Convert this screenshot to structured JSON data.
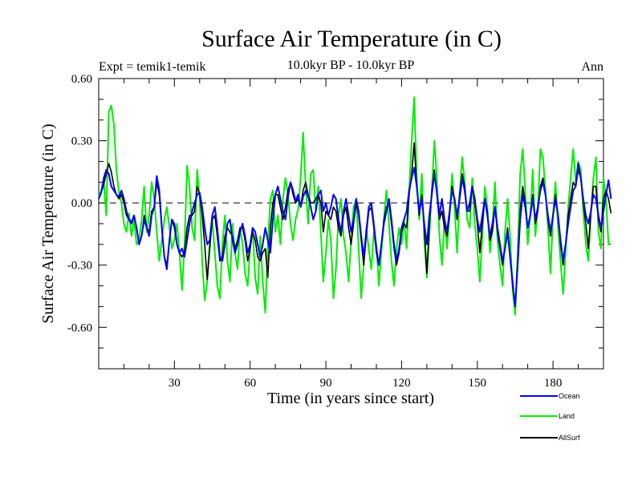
{
  "chart_data": {
    "type": "line",
    "title": "Surface Air Temperature (in C)",
    "left_label": "Expt = temik1-temik",
    "subtitle": "10.0kyr BP - 10.0kyr BP",
    "right_label": "Ann",
    "xlabel": "Time (in years since start)",
    "ylabel": "Surface Air Temperature (in C)",
    "xlim": [
      0,
      200
    ],
    "ylim": [
      -0.8,
      0.6
    ],
    "xticks": [
      30,
      60,
      90,
      120,
      150,
      180
    ],
    "yticks": [
      0.6,
      0.3,
      0.0,
      -0.3,
      -0.6
    ],
    "ytick_labels": [
      "0.60",
      "0.30",
      "0.00",
      "-0.30",
      "-0.60"
    ],
    "reference_line": 0.0,
    "series": [
      {
        "name": "Ocean",
        "color": "#0000ff",
        "values": [
          0.02,
          0.05,
          0.12,
          0.16,
          0.14,
          0.08,
          0.06,
          0.04,
          0.03,
          0.06,
          0.02,
          -0.04,
          -0.08,
          -0.1,
          -0.06,
          -0.12,
          -0.2,
          -0.16,
          -0.08,
          -0.12,
          -0.16,
          -0.06,
          -0.02,
          0.13,
          0.06,
          -0.12,
          -0.26,
          -0.32,
          -0.18,
          -0.08,
          -0.1,
          -0.2,
          -0.24,
          -0.22,
          -0.26,
          -0.18,
          -0.1,
          -0.04,
          0.0,
          0.04,
          0.05,
          -0.02,
          -0.12,
          -0.2,
          -0.18,
          -0.06,
          -0.02,
          -0.12,
          -0.26,
          -0.28,
          -0.2,
          -0.1,
          -0.08,
          -0.18,
          -0.24,
          -0.2,
          -0.14,
          -0.1,
          -0.16,
          -0.24,
          -0.2,
          -0.12,
          -0.14,
          -0.2,
          -0.26,
          -0.2,
          -0.12,
          -0.18,
          -0.24,
          -0.08,
          0.04,
          0.08,
          0.02,
          -0.04,
          -0.08,
          0.03,
          0.1,
          0.06,
          0.01,
          0.04,
          -0.02,
          0.03,
          0.06,
          0.03,
          -0.02,
          -0.08,
          -0.04,
          0.04,
          0.06,
          -0.04,
          0.0,
          -0.06,
          -0.02,
          0.04,
          0.02,
          -0.08,
          -0.14,
          -0.04,
          0.02,
          -0.06,
          -0.14,
          -0.08,
          0.02,
          -0.04,
          -0.16,
          -0.26,
          -0.14,
          -0.02,
          0.0,
          -0.1,
          -0.22,
          -0.3,
          -0.2,
          -0.1,
          -0.04,
          0.02,
          -0.08,
          -0.2,
          -0.28,
          -0.22,
          -0.12,
          -0.08,
          -0.04,
          0.06,
          0.12,
          0.17,
          0.08,
          -0.04,
          0.02,
          -0.1,
          -0.2,
          -0.06,
          0.04,
          0.14,
          0.05,
          -0.06,
          0.02,
          -0.08,
          -0.14,
          -0.04,
          0.06,
          0.02,
          -0.06,
          0.02,
          0.12,
          0.06,
          -0.04,
          0.0,
          0.08,
          0.02,
          -0.08,
          -0.14,
          -0.06,
          0.02,
          -0.06,
          -0.16,
          -0.1,
          -0.02,
          -0.12,
          -0.2,
          -0.28,
          -0.22,
          -0.14,
          -0.26,
          -0.38,
          -0.5,
          -0.3,
          -0.08,
          0.04,
          -0.02,
          -0.12,
          -0.06,
          0.02,
          -0.08,
          -0.02,
          0.06,
          0.1,
          0.04,
          -0.06,
          -0.14,
          -0.06,
          0.02,
          -0.06,
          -0.18,
          -0.28,
          -0.2,
          -0.1,
          -0.02,
          0.06,
          0.08,
          0.19,
          0.12,
          0.02,
          -0.06,
          -0.1,
          -0.04,
          0.04,
          0.02,
          -0.06,
          -0.12,
          -0.04,
          0.04,
          0.11,
          0.02
        ]
      },
      {
        "name": "Land",
        "color": "#00ee00",
        "values": [
          0.03,
          0.06,
          0.1,
          -0.06,
          0.44,
          0.47,
          0.38,
          0.16,
          0.05,
          0.0,
          -0.1,
          -0.14,
          -0.05,
          -0.16,
          -0.08,
          -0.2,
          -0.18,
          -0.08,
          0.08,
          -0.14,
          -0.06,
          0.1,
          0.02,
          -0.14,
          -0.28,
          -0.18,
          -0.08,
          -0.02,
          -0.12,
          -0.22,
          -0.18,
          -0.1,
          -0.24,
          -0.42,
          -0.2,
          0.18,
          0.08,
          -0.12,
          -0.18,
          0.16,
          0.02,
          -0.28,
          -0.47,
          -0.38,
          -0.18,
          -0.08,
          -0.24,
          -0.4,
          -0.46,
          -0.2,
          -0.06,
          -0.28,
          -0.38,
          -0.1,
          -0.24,
          -0.32,
          -0.12,
          -0.2,
          -0.34,
          -0.4,
          -0.22,
          -0.12,
          -0.36,
          -0.44,
          -0.16,
          -0.38,
          -0.53,
          -0.2,
          0.02,
          0.06,
          -0.14,
          -0.06,
          -0.2,
          0.02,
          0.12,
          0.04,
          -0.1,
          -0.18,
          -0.08,
          -0.03,
          0.12,
          0.34,
          0.08,
          -0.1,
          0.14,
          0.16,
          -0.04,
          0.08,
          -0.14,
          -0.38,
          -0.24,
          -0.08,
          -0.18,
          -0.46,
          -0.32,
          -0.06,
          0.02,
          -0.16,
          -0.24,
          -0.38,
          -0.18,
          -0.02,
          0.02,
          -0.22,
          -0.46,
          -0.3,
          -0.12,
          -0.22,
          -0.32,
          -0.14,
          -0.2,
          -0.4,
          -0.24,
          -0.08,
          0.06,
          -0.1,
          -0.28,
          -0.4,
          -0.22,
          -0.12,
          -0.2,
          -0.08,
          -0.22,
          0.06,
          0.3,
          0.51,
          0.12,
          -0.08,
          0.14,
          -0.18,
          -0.36,
          -0.16,
          0.06,
          0.3,
          0.12,
          -0.16,
          -0.3,
          -0.08,
          -0.22,
          -0.06,
          0.14,
          -0.02,
          -0.24,
          0.04,
          0.22,
          0.1,
          -0.08,
          -0.12,
          0.12,
          -0.1,
          -0.22,
          -0.38,
          -0.16,
          0.08,
          -0.02,
          -0.24,
          -0.12,
          0.1,
          -0.18,
          -0.3,
          -0.4,
          -0.14,
          0.02,
          -0.16,
          -0.42,
          -0.54,
          -0.24,
          0.14,
          0.26,
          0.06,
          -0.2,
          -0.06,
          0.16,
          -0.16,
          -0.02,
          0.26,
          0.22,
          0.06,
          -0.12,
          -0.34,
          -0.06,
          0.1,
          -0.12,
          -0.28,
          -0.44,
          -0.24,
          -0.02,
          0.12,
          0.26,
          0.1,
          0.2,
          0.16,
          -0.04,
          -0.2,
          -0.28,
          -0.06,
          0.12,
          0.22,
          -0.14,
          -0.22,
          0.12,
          0.02,
          -0.2,
          -0.2
        ]
      },
      {
        "name": "AllSurf",
        "color": "#000000",
        "values": [
          0.02,
          0.05,
          0.09,
          0.14,
          0.19,
          0.15,
          0.08,
          0.04,
          0.02,
          0.04,
          0.0,
          -0.06,
          -0.08,
          -0.09,
          -0.06,
          -0.12,
          -0.2,
          -0.16,
          -0.06,
          -0.12,
          -0.14,
          -0.04,
          -0.02,
          0.1,
          0.04,
          -0.12,
          -0.26,
          -0.3,
          -0.18,
          -0.08,
          -0.12,
          -0.2,
          -0.24,
          -0.26,
          -0.24,
          -0.12,
          -0.06,
          -0.06,
          -0.04,
          0.08,
          0.04,
          -0.06,
          -0.2,
          -0.37,
          -0.22,
          -0.08,
          -0.06,
          -0.16,
          -0.28,
          -0.26,
          -0.16,
          -0.12,
          -0.14,
          -0.16,
          -0.22,
          -0.18,
          -0.12,
          -0.12,
          -0.18,
          -0.28,
          -0.22,
          -0.14,
          -0.18,
          -0.26,
          -0.28,
          -0.24,
          -0.22,
          -0.36,
          -0.12,
          0.0,
          0.04,
          0.04,
          -0.02,
          -0.08,
          -0.02,
          0.06,
          0.1,
          0.04,
          0.0,
          0.02,
          -0.02,
          0.06,
          0.1,
          0.04,
          0.0,
          0.0,
          0.02,
          0.04,
          0.0,
          -0.14,
          -0.04,
          -0.06,
          -0.08,
          -0.02,
          -0.04,
          -0.12,
          -0.16,
          -0.06,
          -0.02,
          -0.12,
          -0.2,
          -0.1,
          0.0,
          -0.06,
          -0.18,
          -0.3,
          -0.16,
          -0.04,
          -0.02,
          -0.12,
          -0.24,
          -0.3,
          -0.2,
          -0.08,
          -0.02,
          0.0,
          -0.1,
          -0.22,
          -0.3,
          -0.24,
          -0.14,
          -0.1,
          -0.12,
          0.04,
          0.14,
          0.29,
          0.08,
          -0.06,
          0.04,
          -0.12,
          -0.34,
          -0.1,
          0.06,
          0.16,
          0.04,
          -0.08,
          -0.04,
          -0.12,
          -0.16,
          -0.06,
          0.08,
          0.02,
          -0.08,
          0.04,
          0.14,
          0.08,
          -0.04,
          -0.04,
          0.08,
          0.0,
          -0.1,
          -0.24,
          -0.1,
          0.02,
          -0.04,
          -0.18,
          -0.14,
          -0.02,
          -0.14,
          -0.22,
          -0.3,
          -0.22,
          -0.12,
          -0.26,
          -0.4,
          -0.5,
          -0.28,
          -0.04,
          0.08,
          0.0,
          -0.12,
          -0.06,
          0.04,
          -0.1,
          -0.04,
          0.08,
          0.12,
          0.04,
          -0.08,
          -0.16,
          -0.06,
          0.04,
          -0.06,
          -0.2,
          -0.3,
          -0.2,
          -0.06,
          0.02,
          0.1,
          0.08,
          0.16,
          0.12,
          0.0,
          -0.1,
          -0.22,
          -0.04,
          0.08,
          0.08,
          -0.08,
          -0.14,
          0.02,
          0.06,
          0.02,
          -0.05
        ]
      }
    ]
  }
}
